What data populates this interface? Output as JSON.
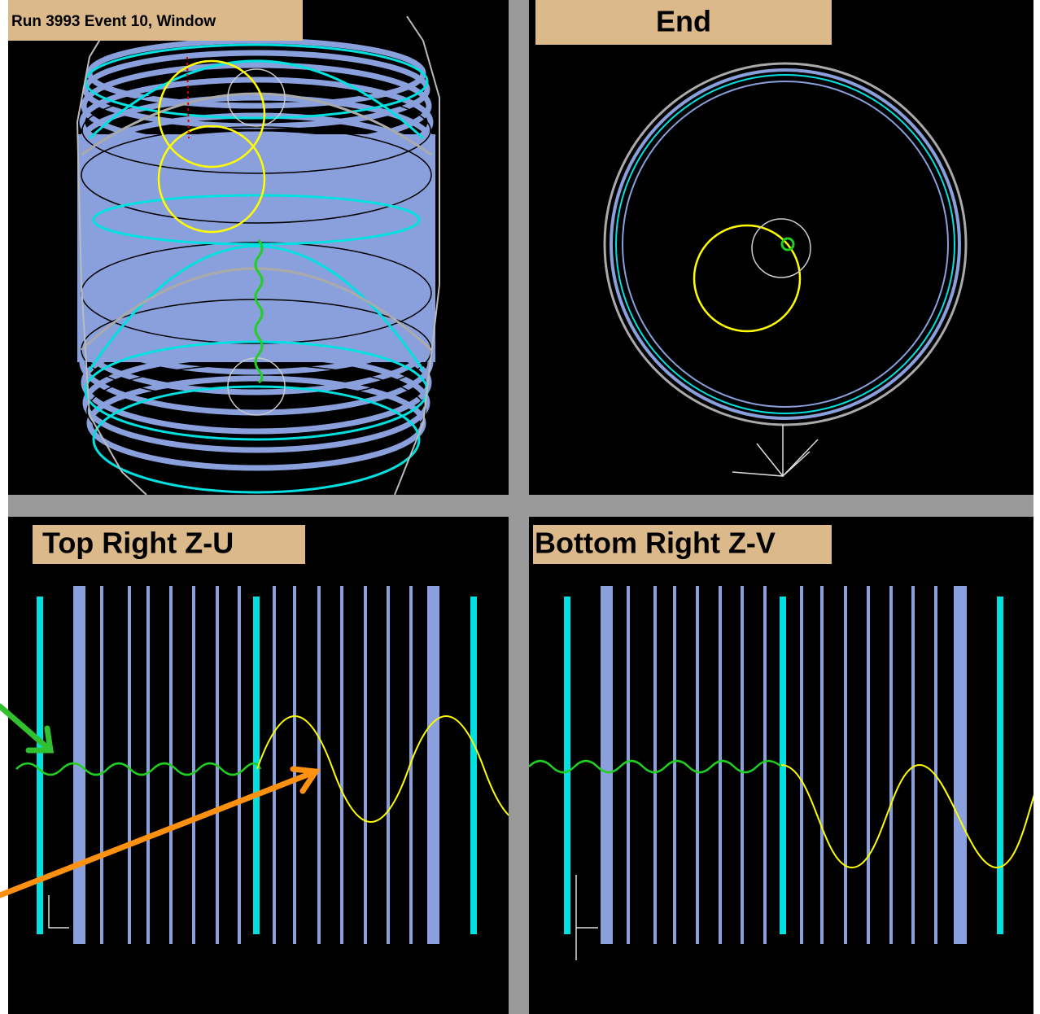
{
  "panels": [
    {
      "title": "Run 3993 Event 10, Window"
    },
    {
      "title": "End"
    },
    {
      "title": "Top Right Z-U"
    },
    {
      "title": "Bottom Right Z-V"
    }
  ]
}
